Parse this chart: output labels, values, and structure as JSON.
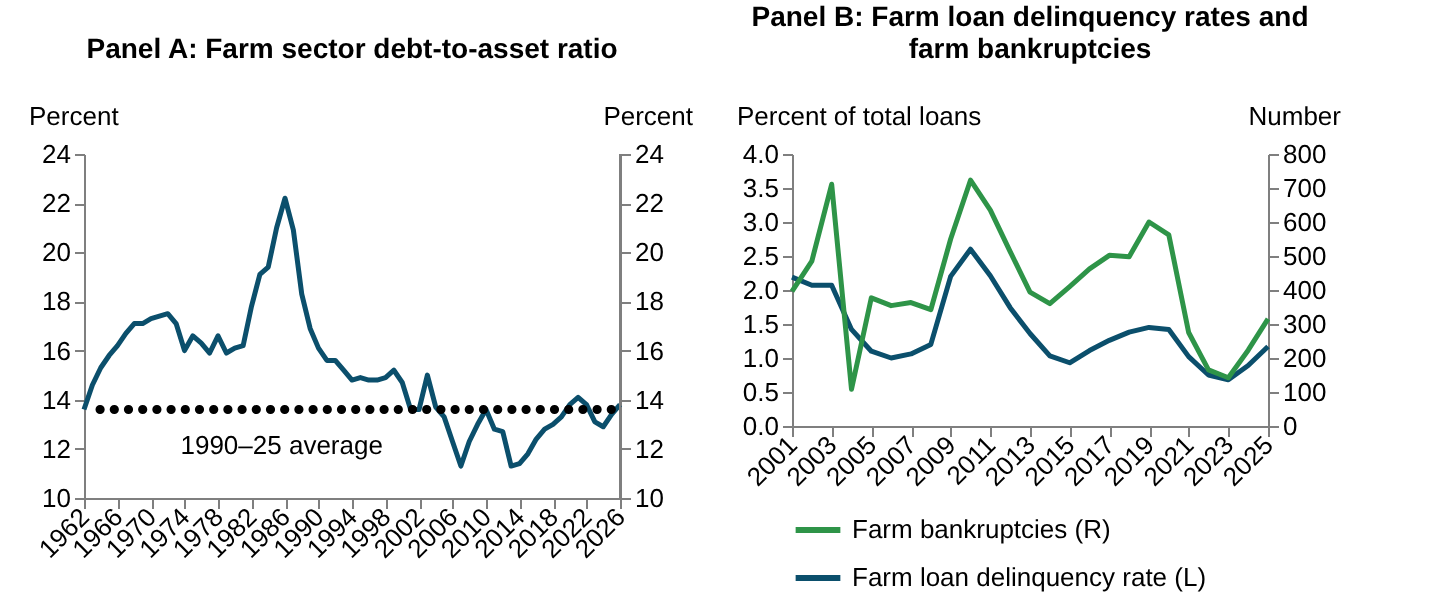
{
  "chart_data": [
    {
      "type": "line",
      "title": "Panel A: Farm sector debt-to-asset ratio",
      "ylabel": "Percent",
      "y2label": "Percent",
      "x": [
        1962,
        1963,
        1964,
        1965,
        1966,
        1967,
        1968,
        1969,
        1970,
        1971,
        1972,
        1973,
        1974,
        1975,
        1976,
        1977,
        1978,
        1979,
        1980,
        1981,
        1982,
        1983,
        1984,
        1985,
        1986,
        1987,
        1988,
        1989,
        1990,
        1991,
        1992,
        1993,
        1994,
        1995,
        1996,
        1997,
        1998,
        1999,
        2000,
        2001,
        2002,
        2003,
        2004,
        2005,
        2006,
        2007,
        2008,
        2009,
        2010,
        2011,
        2012,
        2013,
        2014,
        2015,
        2016,
        2017,
        2018,
        2019,
        2020,
        2021,
        2022,
        2023,
        2024,
        2025,
        2026
      ],
      "series": [
        {
          "color": "#0b4f6c",
          "values": [
            13.6,
            14.6,
            15.3,
            15.8,
            16.2,
            16.7,
            17.1,
            17.1,
            17.3,
            17.4,
            17.5,
            17.1,
            16.0,
            16.6,
            16.3,
            15.9,
            16.6,
            15.9,
            16.1,
            16.2,
            17.8,
            19.1,
            19.4,
            21.0,
            22.2,
            20.9,
            18.3,
            16.9,
            16.1,
            15.6,
            15.6,
            15.2,
            14.8,
            14.9,
            14.8,
            14.8,
            14.9,
            15.2,
            14.7,
            13.6,
            13.6,
            15.0,
            13.7,
            13.3,
            12.3,
            11.3,
            12.3,
            13.0,
            13.6,
            12.8,
            12.7,
            11.3,
            11.4,
            11.8,
            12.4,
            12.8,
            13.0,
            13.3,
            13.8,
            14.1,
            13.8,
            13.1,
            12.9,
            13.4,
            13.8
          ]
        }
      ],
      "xlim": [
        1962,
        2026
      ],
      "xticks": [
        1962,
        1966,
        1970,
        1974,
        1978,
        1982,
        1986,
        1990,
        1994,
        1998,
        2002,
        2006,
        2010,
        2014,
        2018,
        2022,
        2026
      ],
      "ylim": [
        10,
        24
      ],
      "yticks": [
        10,
        12,
        14,
        16,
        18,
        20,
        22,
        24
      ],
      "y2lim": [
        10,
        24
      ],
      "y2ticks": [
        10,
        12,
        14,
        16,
        18,
        20,
        22,
        24
      ],
      "ref_lines": [
        {
          "axis": "y",
          "value": 13.6,
          "label": "1990–25 average",
          "color": "#000000",
          "line_style": "dotted"
        }
      ],
      "grid": false
    },
    {
      "type": "line",
      "title": "Panel B: Farm loan delinquency rates and farm bankruptcies",
      "ylabel": "Percent of total loans",
      "y2label": "Number",
      "x": [
        2001,
        2002,
        2003,
        2004,
        2005,
        2006,
        2007,
        2008,
        2009,
        2010,
        2011,
        2012,
        2013,
        2014,
        2015,
        2016,
        2017,
        2018,
        2019,
        2020,
        2021,
        2022,
        2023,
        2024,
        2025
      ],
      "series": [
        {
          "name": "Farm bankruptcies (R)",
          "color": "#2e9448",
          "axis": "y2",
          "values": [
            396,
            485,
            711,
            108,
            377,
            354,
            363,
            342,
            550,
            723,
            635,
            513,
            394,
            360,
            410,
            462,
            502,
            498,
            600,
            562,
            275,
            165,
            142,
            223,
            315
          ]
        },
        {
          "name": "Farm loan delinquency rate (L)",
          "color": "#0b4f6c",
          "axis": "y",
          "values": [
            2.19,
            2.07,
            2.07,
            1.42,
            1.1,
            1.0,
            1.06,
            1.2,
            2.2,
            2.6,
            2.21,
            1.74,
            1.36,
            1.03,
            0.93,
            1.11,
            1.26,
            1.38,
            1.45,
            1.42,
            1.02,
            0.75,
            0.68,
            0.89,
            1.17
          ]
        }
      ],
      "xlim": [
        2001,
        2025
      ],
      "xticks": [
        2001,
        2003,
        2005,
        2007,
        2009,
        2011,
        2013,
        2015,
        2017,
        2019,
        2021,
        2023,
        2025
      ],
      "ylim": [
        0,
        4
      ],
      "yticks": [
        {
          "value": 0,
          "label": "0.0"
        },
        {
          "value": 0.5,
          "label": "0.5"
        },
        {
          "value": 1,
          "label": "1.0"
        },
        {
          "value": 1.5,
          "label": "1.5"
        },
        {
          "value": 2,
          "label": "2.0"
        },
        {
          "value": 2.5,
          "label": "2.5"
        },
        {
          "value": 3,
          "label": "3.0"
        },
        {
          "value": 3.5,
          "label": "3.5"
        },
        {
          "value": 4,
          "label": "4.0"
        }
      ],
      "y2lim": [
        0,
        800
      ],
      "y2ticks": [
        0,
        100,
        200,
        300,
        400,
        500,
        600,
        700,
        800
      ],
      "legend": "bottom",
      "grid": false
    }
  ]
}
